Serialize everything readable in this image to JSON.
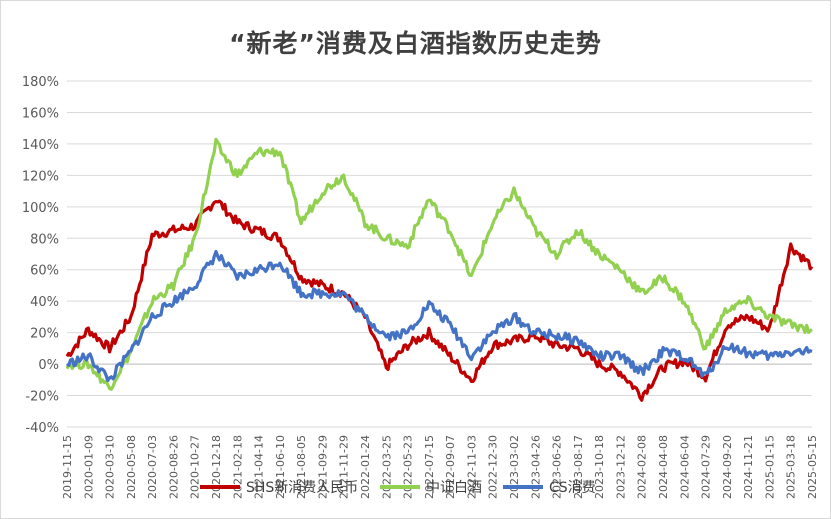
{
  "chart_data": {
    "type": "line",
    "title": "“新老”消费及白酒指数历史走势",
    "ylim": [
      -0.4,
      1.8
    ],
    "y_ticks": [
      "-40%",
      "-20%",
      "0%",
      "20%",
      "40%",
      "60%",
      "80%",
      "100%",
      "120%",
      "140%",
      "160%",
      "180%"
    ],
    "x_tick_labels": [
      "2019-11-15",
      "2020-01-09",
      "2020-03-10",
      "2020-05-08",
      "2020-07-03",
      "2020-08-26",
      "2020-10-27",
      "2020-12-18",
      "2021-02-18",
      "2021-04-14",
      "2021-06-10",
      "2021-08-05",
      "2021-09-29",
      "2021-11-29",
      "2022-01-24",
      "2022-03-25",
      "2022-05-23",
      "2022-07-15",
      "2022-09-07",
      "2022-11-03",
      "2022-12-30",
      "2023-03-02",
      "2023-04-26",
      "2023-06-26",
      "2023-08-17",
      "2023-10-18",
      "2023-12-12",
      "2024-02-08",
      "2024-04-08",
      "2024-06-04",
      "2024-07-29",
      "2024-09-20",
      "2024-11-21",
      "2025-01-15",
      "2025-03-18",
      "2025-05-15"
    ],
    "x": [
      "2019-11-15",
      "2020-01-09",
      "2020-03-10",
      "2020-05-08",
      "2020-07-03",
      "2020-08-26",
      "2020-10-27",
      "2020-12-18",
      "2021-02-18",
      "2021-04-14",
      "2021-06-10",
      "2021-08-05",
      "2021-09-29",
      "2021-11-29",
      "2022-01-24",
      "2022-03-25",
      "2022-05-23",
      "2022-07-15",
      "2022-09-07",
      "2022-11-03",
      "2022-12-30",
      "2023-03-02",
      "2023-04-26",
      "2023-06-26",
      "2023-08-17",
      "2023-10-18",
      "2023-12-12",
      "2024-02-08",
      "2024-04-08",
      "2024-06-04",
      "2024-07-29",
      "2024-09-20",
      "2024-11-21",
      "2025-01-15",
      "2025-03-18",
      "2025-05-15"
    ],
    "grid": true,
    "legend_position": "bottom",
    "series": [
      {
        "name": "SHS新消费人民币",
        "color": "#c00000",
        "values": [
          0.05,
          0.22,
          0.1,
          0.3,
          0.82,
          0.85,
          0.88,
          1.05,
          0.9,
          0.85,
          0.8,
          0.55,
          0.5,
          0.45,
          0.3,
          -0.02,
          0.12,
          0.2,
          0.05,
          -0.1,
          0.12,
          0.15,
          0.18,
          0.12,
          0.1,
          0.0,
          -0.05,
          -0.2,
          -0.02,
          0.02,
          -0.08,
          0.25,
          0.3,
          0.22,
          0.75,
          0.62
        ]
      },
      {
        "name": "中证白酒",
        "color": "#92d050",
        "values": [
          0.0,
          0.0,
          -0.15,
          0.08,
          0.4,
          0.5,
          0.8,
          1.4,
          1.2,
          1.35,
          1.35,
          0.9,
          1.1,
          1.2,
          0.9,
          0.8,
          0.75,
          1.05,
          0.85,
          0.55,
          0.9,
          1.1,
          0.85,
          0.7,
          0.85,
          0.7,
          0.6,
          0.45,
          0.55,
          0.4,
          0.1,
          0.35,
          0.4,
          0.3,
          0.25,
          0.22
        ]
      },
      {
        "name": "CS消费",
        "color": "#4472c4",
        "values": [
          0.0,
          0.05,
          -0.1,
          0.08,
          0.3,
          0.4,
          0.5,
          0.7,
          0.55,
          0.6,
          0.65,
          0.45,
          0.45,
          0.45,
          0.3,
          0.18,
          0.2,
          0.38,
          0.25,
          0.05,
          0.2,
          0.3,
          0.2,
          0.18,
          0.15,
          0.05,
          0.05,
          -0.05,
          0.08,
          0.05,
          -0.08,
          0.12,
          0.07,
          0.05,
          0.08,
          0.08
        ]
      }
    ]
  }
}
